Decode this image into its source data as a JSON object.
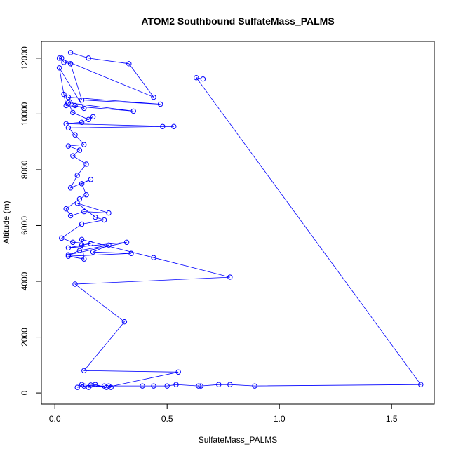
{
  "chart_data": {
    "type": "line",
    "title": "ATOM2 Southbound SulfateMass_PALMS",
    "xlabel": "SulfateMass_PALMS",
    "ylabel": "Altitude (m)",
    "xlim": [
      -0.06,
      1.69
    ],
    "ylim": [
      -400,
      12600
    ],
    "xticks": [
      0.0,
      0.5,
      1.0,
      1.5
    ],
    "xtick_labels": [
      "0.0",
      "0.5",
      "1.0",
      "1.5"
    ],
    "yticks": [
      0,
      2000,
      4000,
      6000,
      8000,
      10000,
      12000
    ],
    "ytick_labels": [
      "0",
      "2000",
      "4000",
      "6000",
      "8000",
      "10000",
      "12000"
    ],
    "grid": false,
    "series": [
      {
        "color": "#0000ff",
        "marker": "open-circle",
        "x": [
          0.07,
          0.15,
          0.33,
          0.44,
          0.02,
          0.03,
          0.04,
          0.07,
          0.12,
          0.47,
          0.06,
          0.09,
          0.13,
          0.02,
          0.04,
          0.05,
          0.35,
          0.06,
          0.08,
          0.15,
          0.17,
          0.12,
          0.05,
          0.53,
          0.48,
          0.06,
          0.09,
          0.13,
          0.06,
          0.11,
          0.08,
          0.14,
          0.1,
          0.07,
          0.16,
          0.12,
          0.14,
          0.11,
          0.05,
          0.07,
          0.13,
          0.24,
          0.1,
          0.18,
          0.22,
          0.12,
          0.03,
          0.08,
          0.16,
          0.12,
          0.06,
          0.32,
          0.06,
          0.11,
          0.24,
          0.17,
          0.34,
          0.06,
          0.13,
          0.12,
          0.44,
          0.78,
          0.09,
          0.31,
          0.13,
          0.55,
          0.23,
          0.18,
          0.1,
          0.12,
          0.13,
          0.22,
          0.15,
          0.16,
          0.25,
          0.24,
          0.39,
          0.44,
          0.5,
          0.54,
          0.64,
          0.65,
          0.73,
          0.78,
          0.89,
          1.63,
          0.63,
          0.66
        ],
        "y": [
          12200,
          12000,
          11800,
          10600,
          12000,
          12000,
          11850,
          11800,
          10500,
          10350,
          10600,
          10300,
          10200,
          11650,
          10700,
          10300,
          10100,
          10400,
          10050,
          9800,
          9900,
          9700,
          9650,
          9550,
          9550,
          9500,
          9250,
          8900,
          8850,
          8700,
          8500,
          8200,
          7800,
          7350,
          7650,
          7500,
          7100,
          6950,
          6600,
          6350,
          6500,
          6450,
          6800,
          6300,
          6200,
          6050,
          5550,
          5400,
          5350,
          5300,
          5200,
          5400,
          4950,
          5100,
          5300,
          5050,
          5000,
          4900,
          4800,
          5500,
          4850,
          4150,
          3900,
          2550,
          800,
          750,
          200,
          300,
          200,
          300,
          250,
          250,
          200,
          280,
          200,
          250,
          250,
          250,
          250,
          300,
          250,
          250,
          300,
          300,
          250,
          300,
          11300,
          11250
        ]
      }
    ]
  }
}
